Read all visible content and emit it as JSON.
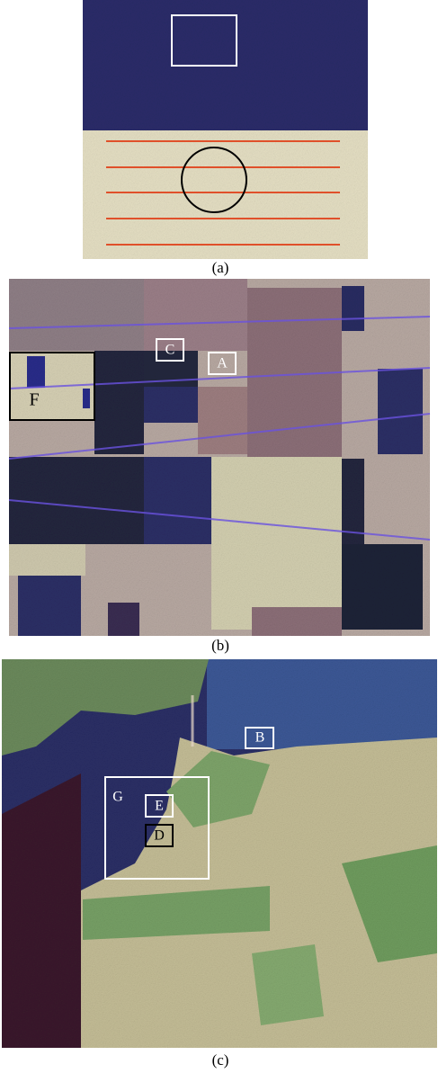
{
  "figure": {
    "panels": [
      {
        "caption": "(a)"
      },
      {
        "caption": "(b)",
        "labels": [
          "C",
          "A",
          "F"
        ]
      },
      {
        "caption": "(c)",
        "labels": [
          "B",
          "G",
          "E",
          "D"
        ]
      }
    ]
  }
}
